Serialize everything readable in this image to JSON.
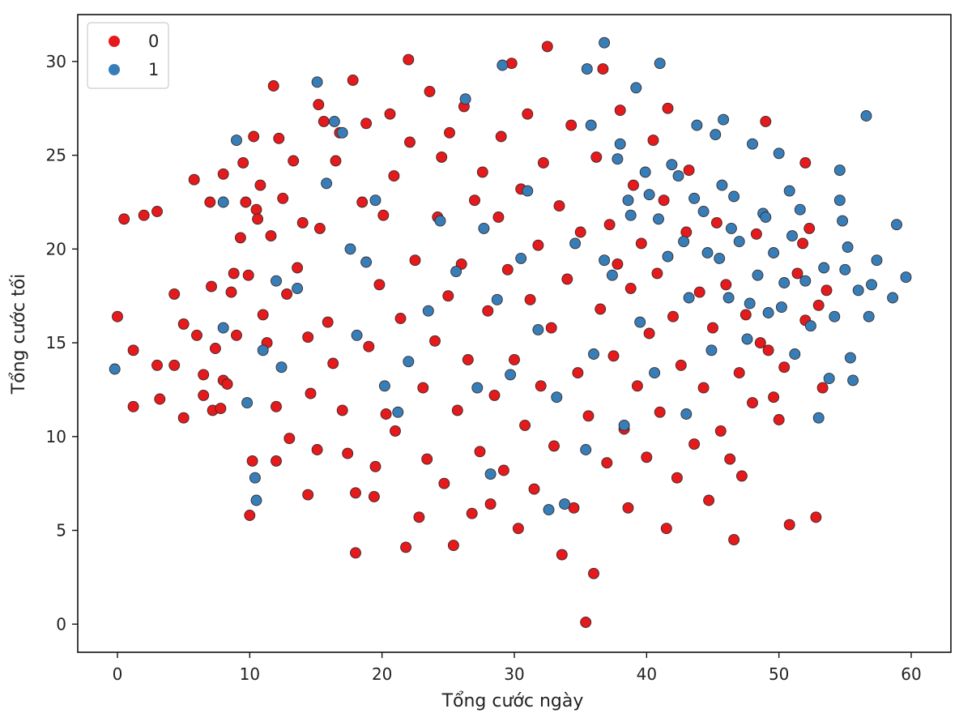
{
  "chart_data": {
    "type": "scatter",
    "title": "",
    "xlabel": "Tổng cước ngày",
    "ylabel": "Tổng cước tối",
    "xlim": [
      -3,
      63
    ],
    "ylim": [
      -1.5,
      32.5
    ],
    "x_ticks": [
      0,
      10,
      20,
      30,
      40,
      50,
      60
    ],
    "y_ticks": [
      0,
      5,
      10,
      15,
      20,
      25,
      30
    ],
    "grid": false,
    "legend": {
      "position": "top-left",
      "entries": [
        "0",
        "1"
      ]
    },
    "series": [
      {
        "name": "0",
        "color": "#e41a1c",
        "points": [
          [
            0,
            16.4
          ],
          [
            0.5,
            21.6
          ],
          [
            2,
            21.8
          ],
          [
            3,
            22
          ],
          [
            1.2,
            14.6
          ],
          [
            1.2,
            11.6
          ],
          [
            3,
            13.8
          ],
          [
            3.2,
            12
          ],
          [
            4.3,
            13.8
          ],
          [
            4.3,
            17.6
          ],
          [
            5,
            11
          ],
          [
            5,
            16
          ],
          [
            5.8,
            23.7
          ],
          [
            6,
            15.4
          ],
          [
            6.5,
            13.3
          ],
          [
            6.5,
            12.2
          ],
          [
            7,
            22.5
          ],
          [
            7.1,
            18
          ],
          [
            7.2,
            11.4
          ],
          [
            7.4,
            14.7
          ],
          [
            7.8,
            11.5
          ],
          [
            8,
            24
          ],
          [
            8,
            13
          ],
          [
            8.3,
            12.8
          ],
          [
            8.6,
            17.7
          ],
          [
            8.8,
            18.7
          ],
          [
            9,
            15.4
          ],
          [
            9.3,
            20.6
          ],
          [
            9.5,
            24.6
          ],
          [
            9.7,
            22.5
          ],
          [
            9.9,
            18.6
          ],
          [
            10,
            5.8
          ],
          [
            10.2,
            8.7
          ],
          [
            10.3,
            26
          ],
          [
            10.5,
            22.1
          ],
          [
            10.6,
            21.6
          ],
          [
            10.8,
            23.4
          ],
          [
            11,
            16.5
          ],
          [
            11.3,
            15
          ],
          [
            11.6,
            20.7
          ],
          [
            11.8,
            28.7
          ],
          [
            12,
            11.6
          ],
          [
            12,
            8.7
          ],
          [
            12.2,
            25.9
          ],
          [
            12.5,
            22.7
          ],
          [
            12.8,
            17.6
          ],
          [
            13,
            9.9
          ],
          [
            13.3,
            24.7
          ],
          [
            13.6,
            19
          ],
          [
            14,
            21.4
          ],
          [
            14.4,
            6.9
          ],
          [
            14.4,
            15.3
          ],
          [
            14.6,
            12.3
          ],
          [
            15.1,
            9.3
          ],
          [
            15.2,
            27.7
          ],
          [
            15.3,
            21.1
          ],
          [
            15.6,
            26.8
          ],
          [
            15.9,
            16.1
          ],
          [
            16.3,
            13.9
          ],
          [
            16.5,
            24.7
          ],
          [
            16.8,
            26.2
          ],
          [
            17,
            11.4
          ],
          [
            17.4,
            9.1
          ],
          [
            17.8,
            29
          ],
          [
            18,
            3.8
          ],
          [
            18,
            7
          ],
          [
            18.5,
            22.5
          ],
          [
            18.8,
            26.7
          ],
          [
            19,
            14.8
          ],
          [
            19.4,
            6.8
          ],
          [
            19.5,
            8.4
          ],
          [
            19.8,
            18.1
          ],
          [
            20.1,
            21.8
          ],
          [
            20.3,
            11.2
          ],
          [
            20.6,
            27.2
          ],
          [
            20.9,
            23.9
          ],
          [
            21,
            10.3
          ],
          [
            21.4,
            16.3
          ],
          [
            21.8,
            4.1
          ],
          [
            22,
            30.1
          ],
          [
            22.1,
            25.7
          ],
          [
            22.5,
            19.4
          ],
          [
            22.8,
            5.7
          ],
          [
            23.1,
            12.6
          ],
          [
            23.4,
            8.8
          ],
          [
            23.6,
            28.4
          ],
          [
            24,
            15.1
          ],
          [
            24.2,
            21.7
          ],
          [
            24.5,
            24.9
          ],
          [
            24.7,
            7.5
          ],
          [
            25,
            17.5
          ],
          [
            25.1,
            26.2
          ],
          [
            25.4,
            4.2
          ],
          [
            25.7,
            11.4
          ],
          [
            26,
            19.2
          ],
          [
            26.2,
            27.6
          ],
          [
            26.5,
            14.1
          ],
          [
            26.8,
            5.9
          ],
          [
            27,
            22.6
          ],
          [
            27.4,
            9.2
          ],
          [
            27.6,
            24.1
          ],
          [
            28,
            16.7
          ],
          [
            28.2,
            6.4
          ],
          [
            28.5,
            12.2
          ],
          [
            28.8,
            21.7
          ],
          [
            29,
            26
          ],
          [
            29.2,
            8.2
          ],
          [
            29.5,
            18.9
          ],
          [
            29.8,
            29.9
          ],
          [
            30,
            14.1
          ],
          [
            30.3,
            5.1
          ],
          [
            30.5,
            23.2
          ],
          [
            30.8,
            10.6
          ],
          [
            31,
            27.2
          ],
          [
            31.2,
            17.3
          ],
          [
            31.5,
            7.2
          ],
          [
            31.8,
            20.2
          ],
          [
            32,
            12.7
          ],
          [
            32.2,
            24.6
          ],
          [
            32.5,
            30.8
          ],
          [
            32.8,
            15.8
          ],
          [
            33,
            9.5
          ],
          [
            33.4,
            22.3
          ],
          [
            33.6,
            3.7
          ],
          [
            34,
            18.4
          ],
          [
            34.3,
            26.6
          ],
          [
            34.5,
            6.2
          ],
          [
            34.8,
            13.4
          ],
          [
            35,
            20.9
          ],
          [
            35.4,
            0.1
          ],
          [
            35.6,
            11.1
          ],
          [
            36,
            2.7
          ],
          [
            36.2,
            24.9
          ],
          [
            36.5,
            16.8
          ],
          [
            36.7,
            29.6
          ],
          [
            37,
            8.6
          ],
          [
            37.2,
            21.3
          ],
          [
            37.5,
            14.3
          ],
          [
            37.8,
            19.2
          ],
          [
            38,
            27.4
          ],
          [
            38.3,
            10.4
          ],
          [
            38.6,
            6.2
          ],
          [
            38.8,
            17.9
          ],
          [
            39,
            23.4
          ],
          [
            39.3,
            12.7
          ],
          [
            39.6,
            20.3
          ],
          [
            40,
            8.9
          ],
          [
            40.2,
            15.5
          ],
          [
            40.5,
            25.8
          ],
          [
            40.8,
            18.7
          ],
          [
            41,
            11.3
          ],
          [
            41.3,
            22.6
          ],
          [
            41.5,
            5.1
          ],
          [
            41.6,
            27.5
          ],
          [
            42,
            16.4
          ],
          [
            42.3,
            7.8
          ],
          [
            42.6,
            13.8
          ],
          [
            43,
            20.9
          ],
          [
            43.2,
            24.2
          ],
          [
            43.6,
            9.6
          ],
          [
            44,
            17.7
          ],
          [
            44.3,
            12.6
          ],
          [
            44.7,
            6.6
          ],
          [
            45,
            15.8
          ],
          [
            45.3,
            21.4
          ],
          [
            45.6,
            10.3
          ],
          [
            46,
            18.1
          ],
          [
            46.3,
            8.8
          ],
          [
            46.6,
            4.5
          ],
          [
            47,
            13.4
          ],
          [
            47.2,
            7.9
          ],
          [
            47.5,
            16.5
          ],
          [
            48,
            11.8
          ],
          [
            48.3,
            20.8
          ],
          [
            48.6,
            15
          ],
          [
            49,
            26.8
          ],
          [
            49.2,
            14.6
          ],
          [
            49.6,
            12.1
          ],
          [
            50,
            10.9
          ],
          [
            50.4,
            13.7
          ],
          [
            50.8,
            5.3
          ],
          [
            51.4,
            18.7
          ],
          [
            51.8,
            20.3
          ],
          [
            52,
            24.6
          ],
          [
            52,
            16.2
          ],
          [
            52.3,
            21.1
          ],
          [
            52.8,
            5.7
          ],
          [
            53,
            17
          ],
          [
            53.3,
            12.6
          ],
          [
            53.6,
            17.8
          ]
        ]
      },
      {
        "name": "1",
        "color": "#377eb8",
        "points": [
          [
            -0.2,
            13.6
          ],
          [
            8,
            15.8
          ],
          [
            8,
            22.5
          ],
          [
            9,
            25.8
          ],
          [
            9.8,
            11.8
          ],
          [
            10.4,
            7.8
          ],
          [
            10.5,
            6.6
          ],
          [
            11,
            14.6
          ],
          [
            12,
            18.3
          ],
          [
            12.4,
            13.7
          ],
          [
            13.6,
            17.9
          ],
          [
            15.1,
            28.9
          ],
          [
            15.8,
            23.5
          ],
          [
            16.4,
            26.8
          ],
          [
            17,
            26.2
          ],
          [
            17.6,
            20
          ],
          [
            18.1,
            15.4
          ],
          [
            18.8,
            19.3
          ],
          [
            19.5,
            22.6
          ],
          [
            20.2,
            12.7
          ],
          [
            21.2,
            11.3
          ],
          [
            22,
            14
          ],
          [
            23.5,
            16.7
          ],
          [
            24.4,
            21.5
          ],
          [
            25.6,
            18.8
          ],
          [
            26.3,
            28
          ],
          [
            27.2,
            12.6
          ],
          [
            27.7,
            21.1
          ],
          [
            28.2,
            8
          ],
          [
            28.7,
            17.3
          ],
          [
            29.1,
            29.8
          ],
          [
            29.7,
            13.3
          ],
          [
            30.5,
            19.5
          ],
          [
            31,
            23.1
          ],
          [
            31.8,
            15.7
          ],
          [
            32.6,
            6.1
          ],
          [
            33.2,
            12.1
          ],
          [
            33.8,
            6.4
          ],
          [
            34.6,
            20.3
          ],
          [
            35.4,
            9.3
          ],
          [
            35.5,
            29.6
          ],
          [
            36,
            14.4
          ],
          [
            36.8,
            31
          ],
          [
            37.4,
            18.6
          ],
          [
            38,
            25.6
          ],
          [
            38.3,
            10.6
          ],
          [
            38.8,
            21.8
          ],
          [
            39.2,
            28.6
          ],
          [
            39.5,
            16.1
          ],
          [
            40.2,
            22.9
          ],
          [
            40.6,
            13.4
          ],
          [
            41,
            29.9
          ],
          [
            41.6,
            19.6
          ],
          [
            42.4,
            23.9
          ],
          [
            43,
            11.2
          ],
          [
            43.2,
            17.4
          ],
          [
            43.8,
            26.6
          ],
          [
            44.3,
            22
          ],
          [
            44.9,
            14.6
          ],
          [
            45.2,
            26.1
          ],
          [
            45.5,
            19.5
          ],
          [
            45.8,
            26.9
          ],
          [
            46.2,
            17.4
          ],
          [
            46.6,
            22.8
          ],
          [
            47,
            20.4
          ],
          [
            47.6,
            15.2
          ],
          [
            48,
            25.6
          ],
          [
            48.4,
            18.6
          ],
          [
            48.8,
            21.9
          ],
          [
            49.2,
            16.6
          ],
          [
            49.6,
            19.8
          ],
          [
            50,
            25.1
          ],
          [
            50.4,
            18.2
          ],
          [
            50.8,
            23.1
          ],
          [
            51.2,
            14.4
          ],
          [
            51.6,
            22.1
          ],
          [
            52,
            18.3
          ],
          [
            52.4,
            15.9
          ],
          [
            53,
            11
          ],
          [
            53.4,
            19
          ],
          [
            53.8,
            13.1
          ],
          [
            54.2,
            16.4
          ],
          [
            54.6,
            24.2
          ],
          [
            54.6,
            22.6
          ],
          [
            54.8,
            21.5
          ],
          [
            55,
            18.9
          ],
          [
            55.2,
            20.1
          ],
          [
            55.4,
            14.2
          ],
          [
            55.6,
            13
          ],
          [
            56,
            17.8
          ],
          [
            56.6,
            27.1
          ],
          [
            56.8,
            16.4
          ],
          [
            57,
            18.1
          ],
          [
            57.4,
            19.4
          ],
          [
            58.6,
            17.4
          ],
          [
            58.9,
            21.3
          ],
          [
            59.6,
            18.5
          ],
          [
            49,
            21.7
          ],
          [
            50.2,
            16.9
          ],
          [
            51,
            20.7
          ],
          [
            47.8,
            17.1
          ],
          [
            46.4,
            21.1
          ],
          [
            45.7,
            23.4
          ],
          [
            44.6,
            19.8
          ],
          [
            43.6,
            22.7
          ],
          [
            42.8,
            20.4
          ],
          [
            41.9,
            24.5
          ],
          [
            40.9,
            21.6
          ],
          [
            39.9,
            24.1
          ],
          [
            38.6,
            22.6
          ],
          [
            37.8,
            24.8
          ],
          [
            36.8,
            19.4
          ],
          [
            35.8,
            26.6
          ]
        ]
      }
    ]
  }
}
